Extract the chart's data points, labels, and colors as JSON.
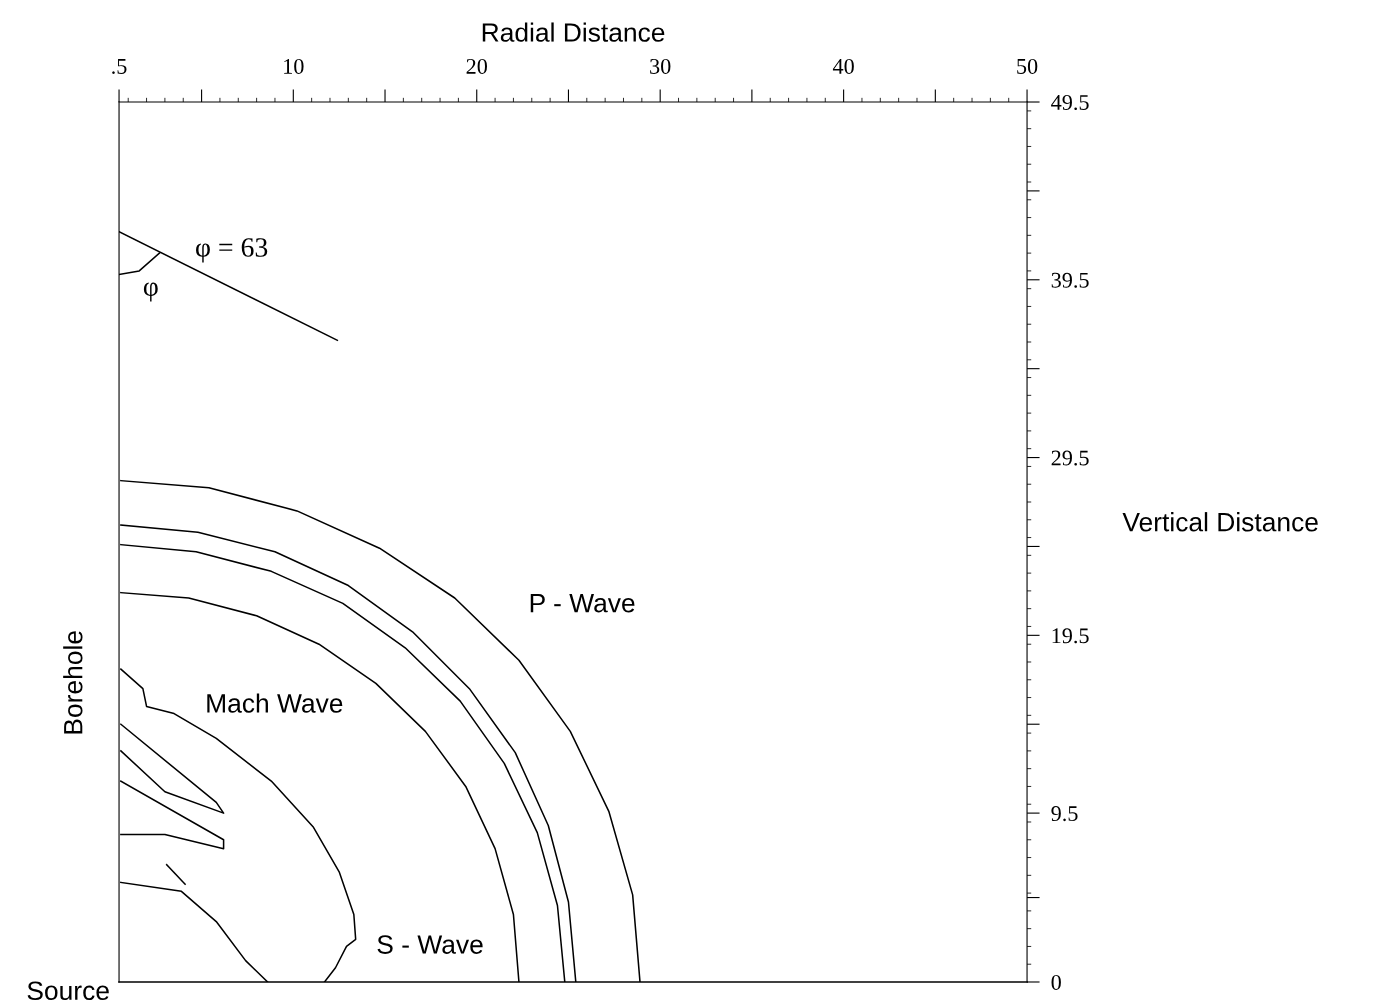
{
  "chart_data": {
    "type": "line",
    "xlabel": "Radial Distance",
    "ylabel": "Vertical Distance",
    "xlim": [
      0.5,
      50
    ],
    "ylim": [
      0,
      49.5
    ],
    "xticks": [
      {
        "value": 0.5,
        "label": ".5"
      },
      {
        "value": 5,
        "label": null
      },
      10,
      {
        "value": 15,
        "label": null
      },
      20,
      {
        "value": 25,
        "label": null
      },
      30,
      {
        "value": 35,
        "label": null
      },
      40,
      {
        "value": 45,
        "label": null
      },
      50
    ],
    "yticks": [
      0,
      {
        "value": 4.75,
        "label": null
      },
      9.5,
      {
        "value": 14.5,
        "label": null
      },
      19.5,
      {
        "value": 24.5,
        "label": null
      },
      29.5,
      {
        "value": 34.5,
        "label": null
      },
      39.5,
      {
        "value": 44.5,
        "label": null
      },
      49.5
    ],
    "grid": false,
    "legend": false,
    "marker": "none",
    "line_style": "solid",
    "series": [
      {
        "color": "#000000",
        "x": [
          0.6,
          5.4,
          10.2,
          14.7,
          18.8,
          22.3,
          25.1,
          27.2,
          28.5,
          28.9
        ],
        "values": [
          28.2,
          27.8,
          26.5,
          24.4,
          21.6,
          18.1,
          14.1,
          9.6,
          4.9,
          0
        ]
      },
      {
        "color": "#000000",
        "x": [
          0.6,
          4.8,
          9.0,
          13.0,
          16.5,
          19.6,
          22.1,
          23.9,
          25.0,
          25.4
        ],
        "values": [
          25.7,
          25.3,
          24.2,
          22.3,
          19.7,
          16.5,
          12.9,
          8.8,
          4.5,
          0
        ]
      },
      {
        "color": "#000000",
        "x": [
          0.6,
          4.7,
          8.8,
          12.7,
          16.1,
          19.1,
          21.5,
          23.3,
          24.4,
          24.8
        ],
        "values": [
          24.6,
          24.2,
          23.1,
          21.3,
          18.8,
          15.8,
          12.3,
          8.4,
          4.3,
          0
        ]
      },
      {
        "color": "#000000",
        "x": [
          0.6,
          4.3,
          8.0,
          11.4,
          14.5,
          17.2,
          19.4,
          21.0,
          22.0,
          22.3
        ],
        "values": [
          21.9,
          21.6,
          20.6,
          19.0,
          16.8,
          14.1,
          11.0,
          7.5,
          3.8,
          0
        ]
      },
      {
        "color": "#000000",
        "x": [
          0.6,
          1.8,
          2.0,
          3.5,
          5.8,
          8.8,
          11.1,
          12.5,
          13.3,
          13.4,
          12.9,
          12.3,
          11.7
        ],
        "values": [
          17.6,
          16.5,
          15.5,
          15.1,
          13.7,
          11.3,
          8.7,
          6.2,
          3.8,
          2.4,
          2.0,
          0.8,
          0
        ]
      },
      {
        "color": "#000000",
        "x": [
          0.6,
          3.9,
          5.8,
          7.4,
          8.6
        ],
        "values": [
          5.6,
          5.1,
          3.4,
          1.2,
          0
        ]
      },
      {
        "color": "#000000",
        "x": [
          3.1,
          4.1
        ],
        "values": [
          6.6,
          5.5
        ]
      },
      {
        "color": "#000000",
        "x": [
          0.6,
          5.8,
          6.2,
          3.0,
          0.6
        ],
        "values": [
          14.5,
          10.1,
          9.5,
          10.7,
          13.0
        ]
      },
      {
        "color": "#000000",
        "x": [
          0.6,
          6.2,
          6.2,
          3.0,
          0.6
        ],
        "values": [
          11.3,
          8.0,
          7.5,
          8.3,
          8.3
        ]
      },
      {
        "color": "#000000",
        "x": [
          0.5,
          12.4
        ],
        "values": [
          42.2,
          36.1
        ]
      },
      {
        "color": "#000000",
        "x": [
          0.5,
          1.6,
          2.7
        ],
        "values": [
          39.8,
          40.0,
          41.0
        ]
      }
    ],
    "annotations": [
      "φ = 63",
      "φ",
      "P - Wave",
      "Mach Wave",
      "S - Wave",
      "Source",
      "Borehole"
    ]
  }
}
